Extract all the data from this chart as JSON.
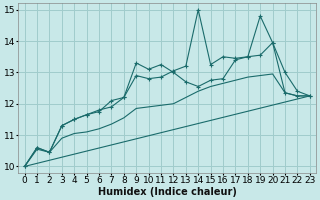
{
  "xlabel": "Humidex (Indice chaleur)",
  "xlim": [
    -0.5,
    23.5
  ],
  "ylim": [
    9.8,
    15.2
  ],
  "yticks": [
    10,
    11,
    12,
    13,
    14,
    15
  ],
  "xticks": [
    0,
    1,
    2,
    3,
    4,
    5,
    6,
    7,
    8,
    9,
    10,
    11,
    12,
    13,
    14,
    15,
    16,
    17,
    18,
    19,
    20,
    21,
    22,
    23
  ],
  "bg_color": "#c8e8e8",
  "grid_color": "#a0cccc",
  "line_color": "#1a6b6b",
  "lines": [
    {
      "x": [
        0,
        1,
        2,
        3,
        4,
        5,
        6,
        7,
        8,
        9,
        10,
        11,
        12,
        13,
        14,
        15,
        16,
        17,
        18,
        19,
        20,
        21,
        22,
        23
      ],
      "y": [
        10.0,
        10.55,
        10.45,
        10.9,
        11.05,
        11.1,
        11.2,
        11.35,
        11.55,
        11.85,
        11.9,
        11.95,
        12.0,
        12.2,
        12.4,
        12.55,
        12.65,
        12.75,
        12.85,
        12.9,
        12.95,
        12.35,
        12.25,
        12.25
      ],
      "marker": false
    },
    {
      "x": [
        0,
        1,
        2,
        3,
        4,
        5,
        6,
        7,
        8,
        9,
        10,
        11,
        12,
        13,
        14,
        15,
        16,
        17,
        18,
        19,
        20,
        21,
        22,
        23
      ],
      "y": [
        10.0,
        10.6,
        10.45,
        11.3,
        11.5,
        11.65,
        11.75,
        12.1,
        12.2,
        13.3,
        13.1,
        13.25,
        13.0,
        12.7,
        12.55,
        12.75,
        12.8,
        13.4,
        13.5,
        13.55,
        13.95,
        12.35,
        12.25,
        12.25
      ],
      "marker": true
    },
    {
      "x": [
        0,
        1,
        2,
        3,
        4,
        5,
        6,
        7,
        8,
        9,
        10,
        11,
        12,
        13,
        14,
        15,
        16,
        17,
        18,
        19,
        20,
        21,
        22,
        23
      ],
      "y": [
        10.0,
        10.6,
        10.45,
        11.3,
        11.5,
        11.65,
        11.8,
        11.9,
        12.2,
        12.9,
        12.8,
        12.85,
        13.05,
        13.2,
        15.0,
        13.25,
        13.5,
        13.45,
        13.5,
        14.8,
        13.95,
        13.0,
        12.4,
        12.25
      ],
      "marker": true
    },
    {
      "x": [
        0,
        23
      ],
      "y": [
        10.0,
        12.25
      ],
      "marker": false
    }
  ],
  "axis_fontsize": 7,
  "tick_fontsize": 6.5
}
